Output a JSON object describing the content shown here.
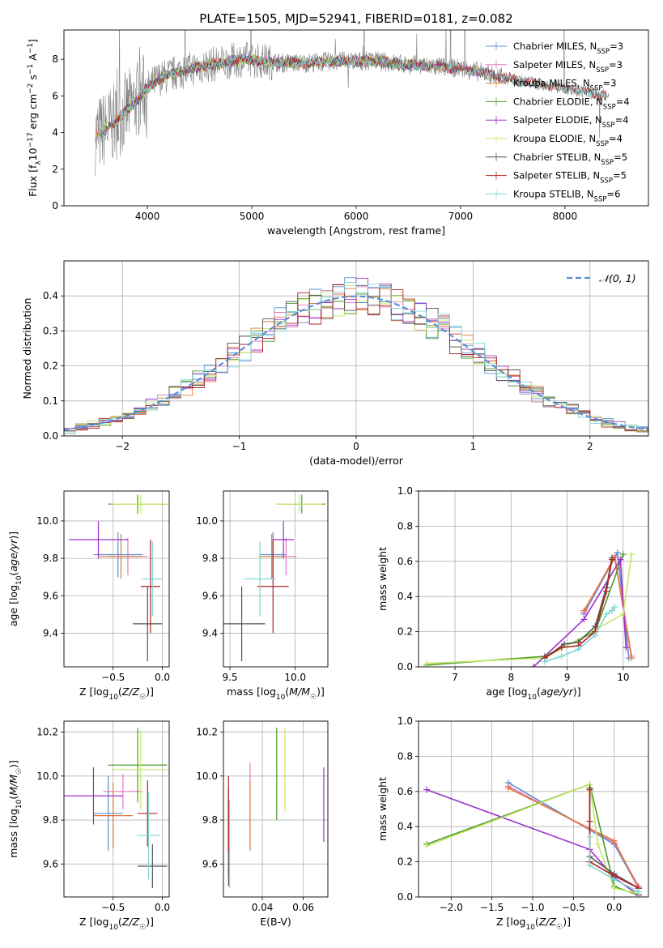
{
  "figure": {
    "title": "PLATE=1505, MJD=52941, FIBERID=0181, z=0.082"
  },
  "colors": {
    "chabrier_miles": "#5b8fd6",
    "salpeter_miles": "#e377c2",
    "kroupa_miles": "#e07b39",
    "chabrier_elodie": "#4c9a2a",
    "salpeter_elodie": "#9b30c9",
    "kroupa_elodie": "#c5e86c",
    "chabrier_stelib": "#555555",
    "salpeter_stelib": "#b22222",
    "kroupa_stelib": "#7fd6d6",
    "data": "#808080"
  },
  "chart_data": [
    {
      "id": "spectrum",
      "type": "line",
      "xlabel": "wavelength [Angstrom, rest frame]",
      "ylabel": "Flux [f_λ 10^-17 erg cm^-2 s^-1 A^-1]",
      "xlim": [
        3200,
        8800
      ],
      "ylim": [
        0,
        9.6
      ],
      "xticks": [
        4000,
        5000,
        6000,
        7000,
        8000
      ],
      "yticks": [
        0,
        2,
        4,
        6,
        8
      ],
      "legend": "right",
      "legend_entries": [
        {
          "label": "Chabrier MILES, N",
          "sub": "SSP",
          "suffix": "=3",
          "color_key": "chabrier_miles"
        },
        {
          "label": "Salpeter MILES, N",
          "sub": "SSP",
          "suffix": "=3",
          "color_key": "salpeter_miles"
        },
        {
          "label": "Kroupa MILES, N",
          "sub": "SSP",
          "suffix": "=3",
          "color_key": "kroupa_miles"
        },
        {
          "label": "Chabrier ELODIE, N",
          "sub": "SSP",
          "suffix": "=4",
          "color_key": "chabrier_elodie"
        },
        {
          "label": "Salpeter ELODIE, N",
          "sub": "SSP",
          "suffix": "=4",
          "color_key": "salpeter_elodie"
        },
        {
          "label": "Kroupa ELODIE, N",
          "sub": "SSP",
          "suffix": "=4",
          "color_key": "kroupa_elodie"
        },
        {
          "label": "Chabrier STELIB, N",
          "sub": "SSP",
          "suffix": "=5",
          "color_key": "chabrier_stelib"
        },
        {
          "label": "Salpeter STELIB, N",
          "sub": "SSP",
          "suffix": "=5",
          "color_key": "salpeter_stelib"
        },
        {
          "label": "Kroupa STELIB, N",
          "sub": "SSP",
          "suffix": "=6",
          "color_key": "kroupa_stelib"
        }
      ],
      "continuum": {
        "x": [
          3500,
          3600,
          3700,
          3800,
          3900,
          4000,
          4100,
          4300,
          4500,
          4700,
          4900,
          5100,
          5300,
          5500,
          5800,
          6000,
          6200,
          6500,
          6800,
          7000,
          7200,
          7400,
          7600,
          7800,
          8000,
          8200,
          8400
        ],
        "y": [
          3.8,
          4.2,
          4.6,
          5.2,
          5.8,
          6.4,
          6.9,
          7.3,
          7.6,
          7.8,
          8.0,
          7.9,
          7.8,
          7.8,
          7.9,
          7.9,
          7.9,
          7.7,
          7.6,
          7.5,
          7.3,
          7.0,
          6.8,
          6.6,
          6.4,
          6.2,
          6.0
        ]
      }
    },
    {
      "id": "residuals",
      "type": "line",
      "xlabel": "(data-model)/error",
      "ylabel": "Normed distribution",
      "xlim": [
        -2.5,
        2.5
      ],
      "ylim": [
        0,
        0.5
      ],
      "xticks": [
        -2,
        -1,
        0,
        1,
        2
      ],
      "yticks": [
        0.0,
        0.1,
        0.2,
        0.3,
        0.4
      ],
      "grid": true,
      "legend": "top-right",
      "normal_label": "𝒩(0, 1)",
      "bin_width": 0.1,
      "histogram_example": {
        "bin_centers": [
          -2.45,
          -2.25,
          -2.05,
          -1.85,
          -1.65,
          -1.45,
          -1.25,
          -1.05,
          -0.85,
          -0.65,
          -0.45,
          -0.25,
          -0.05,
          0.15,
          0.35,
          0.55,
          0.75,
          0.95,
          1.15,
          1.35,
          1.55,
          1.75,
          1.95,
          2.15,
          2.35
        ],
        "values": [
          0.02,
          0.035,
          0.05,
          0.07,
          0.11,
          0.14,
          0.19,
          0.24,
          0.28,
          0.33,
          0.37,
          0.4,
          0.39,
          0.41,
          0.38,
          0.36,
          0.31,
          0.27,
          0.22,
          0.17,
          0.13,
          0.09,
          0.06,
          0.045,
          0.03
        ]
      }
    },
    {
      "id": "age_vs_Z",
      "type": "scatter",
      "xlabel": "Z [log10(Z/Z☉)]",
      "ylabel": "age  [log10(age/yr)]",
      "xlim": [
        -1.0,
        0.07
      ],
      "ylim": [
        9.22,
        10.16
      ],
      "xticks": [
        -0.5,
        0.0
      ],
      "xtick_labels": [
        "−0.5",
        "0.0"
      ],
      "yticks": [
        9.4,
        9.6,
        9.8,
        10.0
      ],
      "yticks_labels": [
        "9.4",
        "9.6",
        "9.8",
        "10.0"
      ],
      "grid": true,
      "points": [
        {
          "series": "chabrier_miles",
          "x": -0.45,
          "xerr": 0.25,
          "y": 9.82,
          "yerr": 0.12
        },
        {
          "series": "salpeter_miles",
          "x": -0.35,
          "xerr": 0.2,
          "y": 9.81,
          "yerr": 0.1
        },
        {
          "series": "kroupa_miles",
          "x": -0.42,
          "xerr": 0.22,
          "y": 9.81,
          "yerr": 0.12
        },
        {
          "series": "chabrier_elodie",
          "x": -0.25,
          "xerr": 0.3,
          "y": 10.09,
          "yerr": 0.05
        },
        {
          "series": "salpeter_elodie",
          "x": -0.65,
          "xerr": 0.3,
          "y": 9.9,
          "yerr": 0.1
        },
        {
          "series": "kroupa_elodie",
          "x": -0.22,
          "xerr": 0.3,
          "y": 10.09,
          "yerr": 0.05
        },
        {
          "series": "chabrier_stelib",
          "x": -0.15,
          "xerr": 0.15,
          "y": 9.45,
          "yerr": 0.2
        },
        {
          "series": "salpeter_stelib",
          "x": -0.12,
          "xerr": 0.1,
          "y": 9.65,
          "yerr": 0.25
        },
        {
          "series": "kroupa_stelib",
          "x": -0.1,
          "xerr": 0.1,
          "y": 9.69,
          "yerr": 0.2
        }
      ]
    },
    {
      "id": "age_vs_mass",
      "type": "scatter",
      "xlabel": "mass [log10(M/M☉)]",
      "ylabel": "",
      "xlim": [
        9.45,
        10.25
      ],
      "ylim": [
        9.22,
        10.16
      ],
      "xticks": [
        9.5,
        10.0
      ],
      "xtick_labels": [
        "9.5",
        "10.0"
      ],
      "yticks": [
        9.4,
        9.6,
        9.8,
        10.0
      ],
      "yticks_labels": [
        "9.4",
        "9.6",
        "9.8",
        "10.0"
      ],
      "grid": true,
      "points": [
        {
          "series": "chabrier_miles",
          "x": 9.83,
          "xerr": 0.1,
          "y": 9.82,
          "yerr": 0.12
        },
        {
          "series": "salpeter_miles",
          "x": 9.93,
          "xerr": 0.08,
          "y": 9.81,
          "yerr": 0.1
        },
        {
          "series": "kroupa_miles",
          "x": 9.82,
          "xerr": 0.1,
          "y": 9.81,
          "yerr": 0.12
        },
        {
          "series": "chabrier_elodie",
          "x": 10.05,
          "xerr": 0.18,
          "y": 10.09,
          "yerr": 0.05
        },
        {
          "series": "salpeter_elodie",
          "x": 9.91,
          "xerr": 0.08,
          "y": 9.9,
          "yerr": 0.1
        },
        {
          "series": "kroupa_elodie",
          "x": 10.03,
          "xerr": 0.18,
          "y": 10.09,
          "yerr": 0.05
        },
        {
          "series": "chabrier_stelib",
          "x": 9.59,
          "xerr": 0.18,
          "y": 9.45,
          "yerr": 0.2
        },
        {
          "series": "salpeter_stelib",
          "x": 9.83,
          "xerr": 0.12,
          "y": 9.65,
          "yerr": 0.25
        },
        {
          "series": "kroupa_stelib",
          "x": 9.73,
          "xerr": 0.12,
          "y": 9.69,
          "yerr": 0.2
        }
      ]
    },
    {
      "id": "mw_vs_age",
      "type": "line",
      "xlabel": "age  [log10(age/yr)]",
      "ylabel": "mass weight",
      "xlim": [
        6.35,
        10.45
      ],
      "ylim": [
        0,
        1.0
      ],
      "xticks": [
        7,
        8,
        9,
        10
      ],
      "xtick_labels": [
        "7",
        "8",
        "9",
        "10"
      ],
      "yticks": [
        0.0,
        0.2,
        0.4,
        0.6,
        0.8,
        1.0
      ],
      "yticks_labels": [
        "0.0",
        "0.2",
        "0.4",
        "0.6",
        "0.8",
        "1.0"
      ],
      "grid": true,
      "series": [
        {
          "series": "chabrier_miles",
          "x": [
            9.3,
            9.9,
            10.1
          ],
          "y": [
            0.3,
            0.65,
            0.05
          ]
        },
        {
          "series": "salpeter_miles",
          "x": [
            9.3,
            9.85,
            10.15
          ],
          "y": [
            0.31,
            0.63,
            0.06
          ]
        },
        {
          "series": "kroupa_miles",
          "x": [
            9.3,
            9.85,
            10.15
          ],
          "y": [
            0.32,
            0.62,
            0.05
          ]
        },
        {
          "series": "chabrier_elodie",
          "x": [
            6.5,
            8.6,
            9.5,
            10.0
          ],
          "y": [
            0.01,
            0.06,
            0.2,
            0.64
          ]
        },
        {
          "series": "salpeter_elodie",
          "x": [
            8.4,
            9.3,
            9.95,
            10.05
          ],
          "y": [
            0.0,
            0.27,
            0.61,
            0.11
          ]
        },
        {
          "series": "kroupa_elodie",
          "x": [
            6.5,
            8.6,
            9.5,
            10.0,
            10.15
          ],
          "y": [
            0.02,
            0.05,
            0.21,
            0.3,
            0.64
          ]
        },
        {
          "series": "chabrier_stelib",
          "x": [
            8.6,
            8.95,
            9.2,
            9.5,
            9.7,
            9.8
          ],
          "y": [
            0.05,
            0.13,
            0.14,
            0.23,
            0.45,
            0.62
          ]
        },
        {
          "series": "salpeter_stelib",
          "x": [
            8.6,
            8.9,
            9.2,
            9.5,
            9.7,
            9.8
          ],
          "y": [
            0.05,
            0.11,
            0.12,
            0.2,
            0.43,
            0.61
          ]
        },
        {
          "series": "kroupa_stelib",
          "x": [
            8.6,
            8.9,
            9.2,
            9.5,
            9.7,
            9.8,
            9.85
          ],
          "y": [
            0.03,
            0.06,
            0.1,
            0.18,
            0.3,
            0.32,
            0.34
          ]
        }
      ]
    },
    {
      "id": "mass_vs_Z",
      "type": "scatter",
      "xlabel": "Z [log10(Z/Z☉)]",
      "ylabel": "mass [log10(M/M☉)]",
      "xlim": [
        -1.0,
        0.07
      ],
      "ylim": [
        9.45,
        10.25
      ],
      "xticks": [
        -0.5,
        0.0
      ],
      "xtick_labels": [
        "−0.5",
        "0.0"
      ],
      "yticks": [
        9.6,
        9.8,
        10.0,
        10.2
      ],
      "yticks_labels": [
        "9.6",
        "9.8",
        "10.0",
        "10.2"
      ],
      "grid": true,
      "points": [
        {
          "series": "chabrier_miles",
          "x": -0.55,
          "xerr": 0.15,
          "y": 9.83,
          "yerr": 0.17
        },
        {
          "series": "salpeter_miles",
          "x": -0.4,
          "xerr": 0.2,
          "y": 9.93,
          "yerr": 0.08
        },
        {
          "series": "kroupa_miles",
          "x": -0.5,
          "xerr": 0.2,
          "y": 9.82,
          "yerr": 0.15
        },
        {
          "series": "chabrier_elodie",
          "x": -0.25,
          "xerr": 0.3,
          "y": 10.05,
          "yerr": 0.17
        },
        {
          "series": "salpeter_elodie",
          "x": -0.7,
          "xerr": 0.3,
          "y": 9.91,
          "yerr": 0.13
        },
        {
          "series": "kroupa_elodie",
          "x": -0.22,
          "xerr": 0.3,
          "y": 10.03,
          "yerr": 0.18
        },
        {
          "series": "chabrier_stelib",
          "x": -0.1,
          "xerr": 0.15,
          "y": 9.59,
          "yerr": 0.1
        },
        {
          "series": "salpeter_stelib",
          "x": -0.15,
          "xerr": 0.1,
          "y": 9.83,
          "yerr": 0.15
        },
        {
          "series": "kroupa_stelib",
          "x": -0.14,
          "xerr": 0.12,
          "y": 9.73,
          "yerr": 0.2
        }
      ]
    },
    {
      "id": "mass_vs_ebv",
      "type": "scatter",
      "xlabel": "E(B-V)",
      "ylabel": "",
      "xlim": [
        0.021,
        0.072
      ],
      "ylim": [
        9.45,
        10.25
      ],
      "xticks": [
        0.04,
        0.06
      ],
      "xtick_labels": [
        "0.04",
        "0.06"
      ],
      "yticks": [
        9.6,
        9.8,
        10.0,
        10.2
      ],
      "yticks_labels": [
        "9.6",
        "9.8",
        "10.0",
        "10.2"
      ],
      "grid": true,
      "points": [
        {
          "series": "chabrier_miles",
          "x": 0.0235,
          "xerr": 0,
          "y": 9.75,
          "yerr": 0.2
        },
        {
          "series": "salpeter_miles",
          "x": 0.034,
          "xerr": 0,
          "y": 9.93,
          "yerr": 0.13
        },
        {
          "series": "kroupa_miles",
          "x": 0.034,
          "xerr": 0,
          "y": 9.82,
          "yerr": 0.16
        },
        {
          "series": "chabrier_elodie",
          "x": 0.047,
          "xerr": 0,
          "y": 10.01,
          "yerr": 0.21
        },
        {
          "series": "salpeter_elodie",
          "x": 0.07,
          "xerr": 0,
          "y": 9.87,
          "yerr": 0.17
        },
        {
          "series": "kroupa_elodie",
          "x": 0.051,
          "xerr": 0,
          "y": 10.03,
          "yerr": 0.19
        },
        {
          "series": "chabrier_stelib",
          "x": 0.0235,
          "xerr": 0,
          "y": 9.7,
          "yerr": 0.2
        },
        {
          "series": "salpeter_stelib",
          "x": 0.0235,
          "xerr": 0,
          "y": 9.83,
          "yerr": 0.17
        },
        {
          "series": "kroupa_stelib",
          "x": 0.024,
          "xerr": 0,
          "y": 9.69,
          "yerr": 0.2
        }
      ]
    },
    {
      "id": "mw_vs_Z",
      "type": "line",
      "xlabel": "Z [log10(Z/Z☉)]",
      "ylabel": "mass weight",
      "xlim": [
        -2.4,
        0.42
      ],
      "ylim": [
        0,
        1.0
      ],
      "xticks": [
        -2.0,
        -1.5,
        -1.0,
        -0.5,
        0.0
      ],
      "xtick_labels": [
        "−2.0",
        "−1.5",
        "−1.0",
        "−0.5",
        "0.0"
      ],
      "yticks": [
        0.0,
        0.2,
        0.4,
        0.6,
        0.8,
        1.0
      ],
      "yticks_labels": [
        "0.0",
        "0.2",
        "0.4",
        "0.6",
        "0.8",
        "1.0"
      ],
      "grid": true,
      "series": [
        {
          "series": "chabrier_miles",
          "x": [
            -1.3,
            0.0,
            0.3
          ],
          "y": [
            0.65,
            0.3,
            0.05
          ]
        },
        {
          "series": "salpeter_miles",
          "x": [
            -1.3,
            0.0,
            0.3
          ],
          "y": [
            0.63,
            0.31,
            0.06
          ]
        },
        {
          "series": "kroupa_miles",
          "x": [
            -1.3,
            0.0,
            0.3
          ],
          "y": [
            0.62,
            0.32,
            0.05
          ]
        },
        {
          "series": "chabrier_elodie",
          "x": [
            -2.3,
            -0.3,
            0.0,
            0.3
          ],
          "y": [
            0.3,
            0.64,
            0.06,
            0.01
          ]
        },
        {
          "series": "salpeter_elodie",
          "x": [
            -2.3,
            -0.3,
            0.0,
            0.3
          ],
          "y": [
            0.61,
            0.27,
            0.11,
            0.01
          ]
        },
        {
          "series": "kroupa_elodie",
          "x": [
            -2.3,
            -0.3,
            -0.2,
            0.0,
            0.3
          ],
          "y": [
            0.29,
            0.64,
            0.3,
            0.05,
            0.02
          ]
        },
        {
          "series": "chabrier_stelib",
          "x": [
            -0.3,
            -0.3,
            0.0,
            0.3
          ],
          "y": [
            0.62,
            0.23,
            0.13,
            0.05
          ]
        },
        {
          "series": "salpeter_stelib",
          "x": [
            -0.3,
            -0.3,
            -0.3,
            0.0,
            0.3
          ],
          "y": [
            0.61,
            0.43,
            0.2,
            0.12,
            0.05
          ]
        },
        {
          "series": "kroupa_stelib",
          "x": [
            -0.3,
            -0.3,
            0.0,
            0.3
          ],
          "y": [
            0.34,
            0.18,
            0.1,
            0.03
          ]
        }
      ]
    }
  ]
}
